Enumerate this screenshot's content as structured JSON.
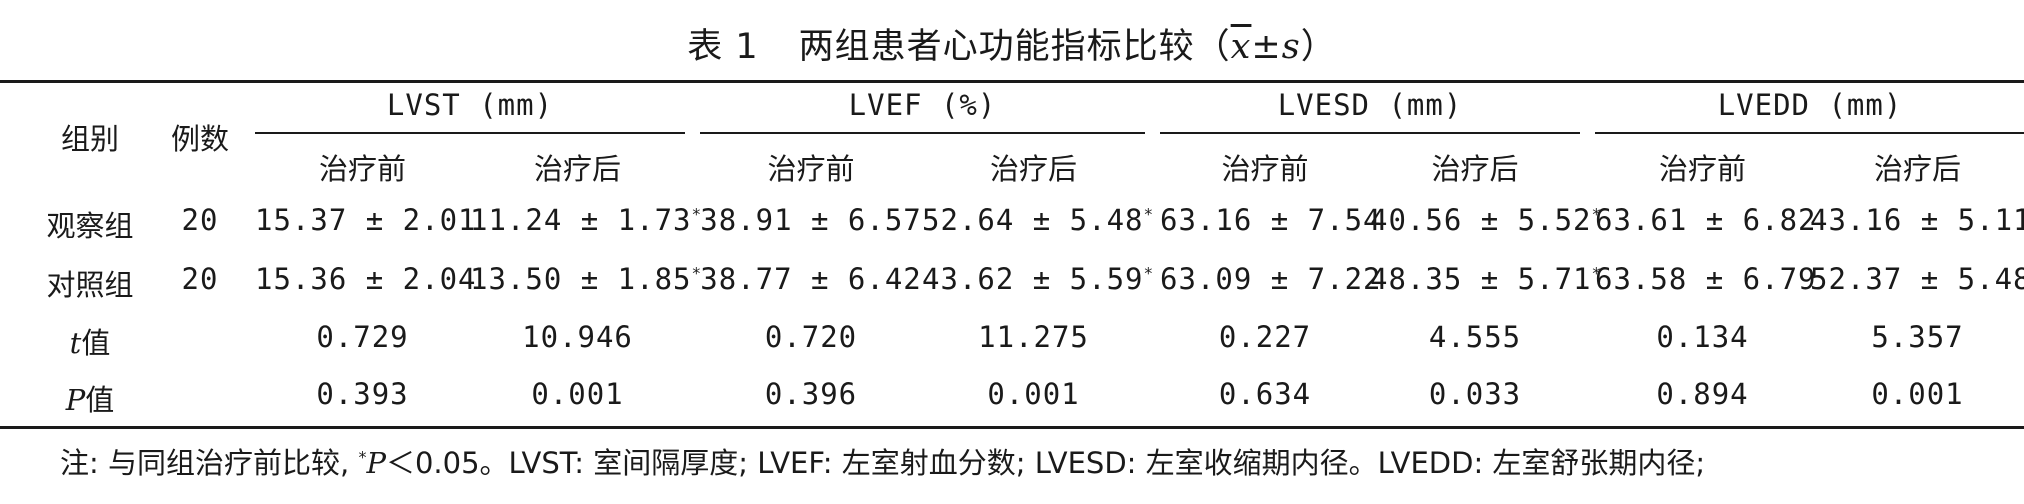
{
  "title": {
    "label": "表 1",
    "text": "两组患者心功能指标比较（",
    "xbar": "x",
    "pm": "±",
    "s": "s",
    "close": "）"
  },
  "header": {
    "group": "组别",
    "count": "例数",
    "metrics": [
      "LVST (mm)",
      "LVEF (%)",
      "LVESD (mm)",
      "LVEDD (mm)"
    ],
    "before": "治疗前",
    "after": "治疗后"
  },
  "rows": [
    {
      "name": "观察组",
      "n": "20",
      "values": [
        "15.37 ± 2.01",
        "11.24 ± 1.73",
        "38.91 ± 6.57",
        "52.64 ± 5.48",
        "63.16 ± 7.54",
        "40.56 ± 5.52",
        "63.61 ± 6.82",
        "43.16 ± 5.11"
      ],
      "marks": [
        "",
        "*",
        "",
        "*",
        "",
        "*",
        "",
        "*"
      ]
    },
    {
      "name": "对照组",
      "n": "20",
      "values": [
        "15.36 ± 2.04",
        "13.50 ± 1.85",
        "38.77 ± 6.42",
        "43.62 ± 5.59",
        "63.09 ± 7.22",
        "48.35 ± 5.71",
        "63.58 ± 6.79",
        "52.37 ± 5.48"
      ],
      "marks": [
        "",
        "*",
        "",
        "*",
        "",
        "*",
        "",
        "*"
      ]
    }
  ],
  "t_row": {
    "sym": "t",
    "label": "值",
    "values": [
      "0.729",
      "10.946",
      "0.720",
      "11.275",
      "0.227",
      "4.555",
      "0.134",
      "5.357"
    ]
  },
  "p_row": {
    "sym": "P",
    "label": "值",
    "values": [
      "0.393",
      "0.001",
      "0.396",
      "0.001",
      "0.634",
      "0.033",
      "0.894",
      "0.001"
    ]
  },
  "note": {
    "prefix": "注: 与同组治疗前比较, ",
    "star": "*",
    "p": "P",
    "rest": "＜0.05。LVST: 室间隔厚度; LVEF: 左室射血分数; LVESD: 左室收缩期内径。LVEDD: 左室舒张期内径;"
  }
}
